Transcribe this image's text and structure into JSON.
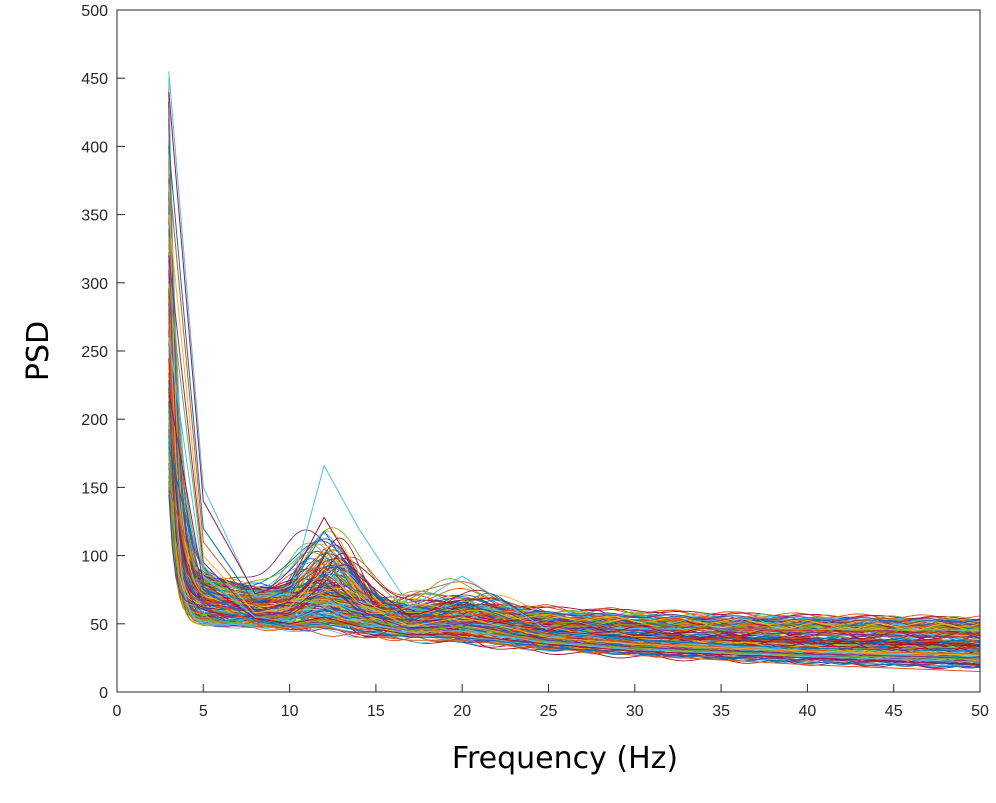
{
  "chart_data": {
    "type": "line",
    "title": "",
    "xlabel": "Frequency (Hz)",
    "ylabel": "PSD",
    "xlim": [
      0,
      50
    ],
    "ylim": [
      0,
      500
    ],
    "xticks": [
      0,
      5,
      10,
      15,
      20,
      25,
      30,
      35,
      40,
      45,
      50
    ],
    "yticks": [
      0,
      50,
      100,
      150,
      200,
      250,
      300,
      350,
      400,
      450,
      500
    ],
    "grid": false,
    "legend": "none",
    "series_count_approx": 200,
    "palette": [
      "#0072BD",
      "#D95319",
      "#EDB120",
      "#7E2F8E",
      "#77AC30",
      "#4DBEEE",
      "#A2142F"
    ],
    "series": [
      {
        "x": [
          3,
          5,
          8,
          10,
          12,
          14,
          17,
          20,
          25,
          30,
          40,
          50
        ],
        "y": [
          455,
          150,
          70,
          72,
          166,
          120,
          62,
          85,
          45,
          38,
          30,
          25
        ]
      },
      {
        "x": [
          3,
          5,
          8,
          10,
          12,
          14,
          17,
          20,
          25,
          30,
          40,
          50
        ],
        "y": [
          440,
          140,
          72,
          80,
          128,
          85,
          55,
          55,
          45,
          40,
          36,
          34
        ]
      },
      {
        "x": [
          3,
          5,
          8,
          10,
          12,
          14,
          17,
          20,
          25,
          30,
          40,
          50
        ],
        "y": [
          400,
          120,
          65,
          75,
          118,
          80,
          52,
          66,
          44,
          38,
          32,
          30
        ]
      },
      {
        "x": [
          3,
          5,
          8,
          10,
          12,
          14,
          17,
          20,
          25,
          30,
          40,
          50
        ],
        "y": [
          380,
          110,
          62,
          70,
          105,
          75,
          50,
          60,
          42,
          36,
          30,
          28
        ]
      },
      {
        "x": [
          3,
          5,
          8,
          10,
          12,
          14,
          17,
          20,
          25,
          30,
          40,
          50
        ],
        "y": [
          350,
          100,
          58,
          62,
          90,
          65,
          48,
          55,
          40,
          35,
          30,
          27
        ]
      },
      {
        "x": [
          3,
          5,
          8,
          10,
          12,
          14,
          17,
          20,
          25,
          30,
          40,
          50
        ],
        "y": [
          320,
          95,
          56,
          58,
          80,
          60,
          46,
          50,
          38,
          33,
          28,
          25
        ]
      },
      {
        "x": [
          3,
          5,
          8,
          10,
          12,
          14,
          17,
          20,
          25,
          30,
          40,
          50
        ],
        "y": [
          300,
          90,
          55,
          55,
          70,
          55,
          45,
          48,
          37,
          32,
          27,
          24
        ]
      },
      {
        "x": [
          3,
          5,
          8,
          10,
          12,
          14,
          17,
          20,
          25,
          30,
          40,
          50
        ],
        "y": [
          260,
          85,
          55,
          52,
          62,
          52,
          44,
          45,
          36,
          31,
          26,
          22
        ]
      },
      {
        "x": [
          3,
          5,
          8,
          10,
          12,
          14,
          17,
          20,
          25,
          30,
          40,
          50
        ],
        "y": [
          220,
          80,
          54,
          50,
          55,
          48,
          42,
          42,
          35,
          30,
          25,
          20
        ]
      },
      {
        "x": [
          3,
          5,
          8,
          10,
          12,
          14,
          17,
          20,
          25,
          30,
          40,
          50
        ],
        "y": [
          180,
          75,
          52,
          48,
          50,
          45,
          40,
          40,
          33,
          28,
          22,
          18
        ]
      },
      {
        "x": [
          3,
          5,
          8,
          10,
          12,
          14,
          17,
          20,
          25,
          30,
          40,
          50
        ],
        "y": [
          150,
          70,
          50,
          46,
          48,
          42,
          38,
          38,
          32,
          27,
          20,
          15
        ]
      }
    ]
  }
}
